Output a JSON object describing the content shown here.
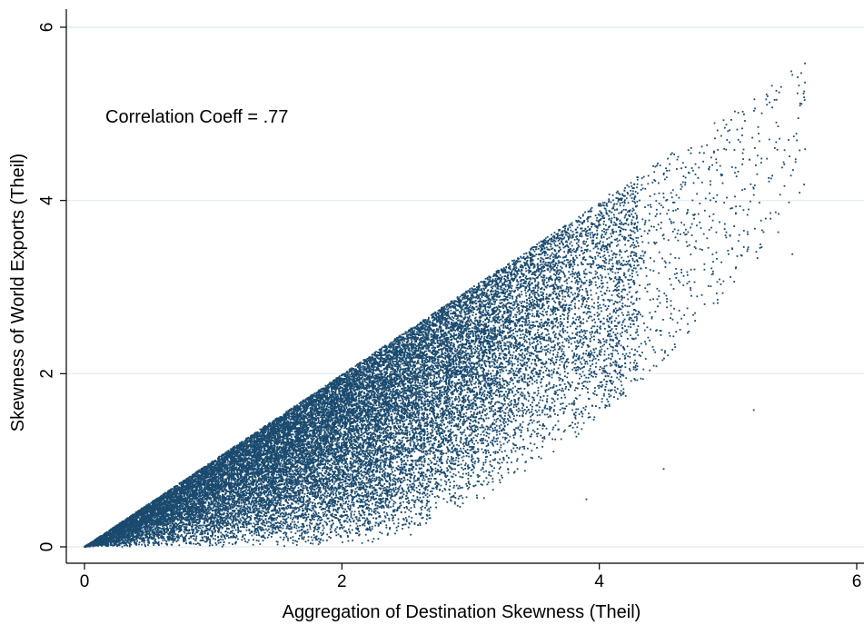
{
  "chart_data": {
    "type": "scatter",
    "title": "",
    "xlabel": "Aggregation of Destination Skewness (Theil)",
    "ylabel": "Skewness of World Exports (Theil)",
    "xlim": [
      0,
      6
    ],
    "ylim": [
      0,
      6
    ],
    "x_ticks": [
      0,
      2,
      4,
      6
    ],
    "y_ticks": [
      0,
      2,
      4,
      6
    ],
    "x_tick_labels": [
      "0",
      "2",
      "4",
      "6"
    ],
    "y_tick_labels": [
      "0",
      "2",
      "4",
      "6"
    ],
    "grid": "horizontal",
    "annotation": "Correlation Coeff = .77",
    "marker_color": "#1a4a6e",
    "point_cloud": {
      "description_of_shape": "dense wedge bounded above by y=x, below by a convex curve",
      "upper_bound": "y = x",
      "x_range": [
        0,
        5.6
      ],
      "approx_point_count": 30000
    },
    "sample_points": [
      [
        0.5,
        0.3
      ],
      [
        1.0,
        0.6
      ],
      [
        1.5,
        1.0
      ],
      [
        2.0,
        1.4
      ],
      [
        2.5,
        1.8
      ],
      [
        3.0,
        2.2
      ],
      [
        3.5,
        2.8
      ],
      [
        4.0,
        3.5
      ],
      [
        4.5,
        4.3
      ],
      [
        5.0,
        4.8
      ],
      [
        5.5,
        5.45
      ],
      [
        5.2,
        1.58
      ],
      [
        5.5,
        3.38
      ],
      [
        4.5,
        0.9
      ],
      [
        3.9,
        0.55
      ]
    ]
  }
}
